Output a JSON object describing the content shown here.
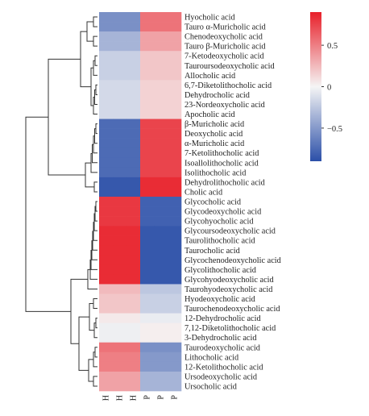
{
  "chart_data": {
    "type": "heatmap",
    "title": "",
    "columns": [
      "H",
      "H",
      "H",
      "P",
      "P",
      "P"
    ],
    "rows": [
      "Hyocholic acid",
      "Tauro α-Muricholic acid",
      "Chenodeoxycholic acid",
      "Tauro β-Muricholic acid",
      "7-Ketodeoxycholic acid",
      "Tauroursodeoxycholic acid",
      "Allocholic acid",
      "6,7-Diketolithocholic acid",
      "Dehydrocholic acid",
      "23-Nordeoxycholic acid",
      "Apocholic acid",
      "β-Muricholic acid",
      "Deoxycholic acid",
      "α-Muricholic acid",
      "7-Ketolithocholic acid",
      "Isoallolithocholic acid",
      "Isolithocholic acid",
      "Dehydrolithocholic acid",
      "Cholic acid",
      "Glycocholic acid",
      "Glycodeoxycholic acid",
      "Glycohyocholic acid",
      "Glycoursodeoxycholic acid",
      "Taurolithocholic acid",
      "Taurocholic acid",
      "Glycochenodeoxycholic acid",
      "Glycolithocholic acid",
      "Glycohyodeoxycholic acid",
      "Taurohyodeoxycholic acid",
      "Hyodeoxycholic acid",
      "Taurochenodeoxycholic acid",
      "12-Dehydrocholic acid",
      "7,12-Diketolithocholic acid",
      "3-Dehydrocholic acid",
      "Taurodeoxycholic acid",
      "Lithocholic acid",
      "12-Ketolithocholic acid",
      "Ursodeoxycholic acid",
      "Ursocholic acid"
    ],
    "values": [
      [
        -0.55,
        -0.55,
        -0.55,
        0.55,
        0.55,
        0.55
      ],
      [
        -0.55,
        -0.55,
        -0.55,
        0.55,
        0.55,
        0.55
      ],
      [
        -0.35,
        -0.35,
        -0.35,
        0.35,
        0.35,
        0.35
      ],
      [
        -0.35,
        -0.35,
        -0.35,
        0.35,
        0.35,
        0.35
      ],
      [
        -0.2,
        -0.2,
        -0.2,
        0.2,
        0.2,
        0.2
      ],
      [
        -0.2,
        -0.2,
        -0.2,
        0.2,
        0.2,
        0.2
      ],
      [
        -0.2,
        -0.2,
        -0.2,
        0.2,
        0.2,
        0.2
      ],
      [
        -0.15,
        -0.15,
        -0.15,
        0.15,
        0.15,
        0.15
      ],
      [
        -0.15,
        -0.15,
        -0.15,
        0.15,
        0.15,
        0.15
      ],
      [
        -0.15,
        -0.15,
        -0.15,
        0.15,
        0.15,
        0.15
      ],
      [
        -0.15,
        -0.15,
        -0.15,
        0.15,
        0.15,
        0.15
      ],
      [
        -0.75,
        -0.75,
        -0.75,
        0.75,
        0.75,
        0.75
      ],
      [
        -0.75,
        -0.75,
        -0.75,
        0.75,
        0.75,
        0.75
      ],
      [
        -0.75,
        -0.75,
        -0.75,
        0.75,
        0.75,
        0.75
      ],
      [
        -0.75,
        -0.75,
        -0.75,
        0.75,
        0.75,
        0.75
      ],
      [
        -0.75,
        -0.75,
        -0.75,
        0.75,
        0.75,
        0.75
      ],
      [
        -0.75,
        -0.75,
        -0.75,
        0.75,
        0.75,
        0.75
      ],
      [
        -0.85,
        -0.85,
        -0.85,
        0.85,
        0.85,
        0.85
      ],
      [
        -0.85,
        -0.85,
        -0.85,
        0.85,
        0.85,
        0.85
      ],
      [
        0.8,
        0.8,
        0.8,
        -0.8,
        -0.8,
        -0.8
      ],
      [
        0.8,
        0.8,
        0.8,
        -0.8,
        -0.8,
        -0.8
      ],
      [
        0.8,
        0.8,
        0.8,
        -0.8,
        -0.8,
        -0.8
      ],
      [
        0.85,
        0.85,
        0.85,
        -0.85,
        -0.85,
        -0.85
      ],
      [
        0.85,
        0.85,
        0.85,
        -0.85,
        -0.85,
        -0.85
      ],
      [
        0.85,
        0.85,
        0.85,
        -0.85,
        -0.85,
        -0.85
      ],
      [
        0.85,
        0.85,
        0.85,
        -0.85,
        -0.85,
        -0.85
      ],
      [
        0.85,
        0.85,
        0.85,
        -0.85,
        -0.85,
        -0.85
      ],
      [
        0.85,
        0.85,
        0.85,
        -0.85,
        -0.85,
        -0.85
      ],
      [
        0.25,
        0.25,
        0.25,
        -0.25,
        -0.25,
        -0.25
      ],
      [
        0.2,
        0.2,
        0.2,
        -0.2,
        -0.2,
        -0.2
      ],
      [
        0.2,
        0.2,
        0.2,
        -0.2,
        -0.2,
        -0.2
      ],
      [
        0.05,
        0.05,
        0.05,
        -0.05,
        -0.05,
        -0.05
      ],
      [
        -0.03,
        -0.03,
        -0.03,
        0.03,
        0.03,
        0.03
      ],
      [
        -0.03,
        -0.03,
        -0.03,
        0.03,
        0.03,
        0.03
      ],
      [
        0.55,
        0.55,
        0.55,
        -0.55,
        -0.55,
        -0.55
      ],
      [
        0.5,
        0.5,
        0.5,
        -0.5,
        -0.5,
        -0.5
      ],
      [
        0.5,
        0.5,
        0.5,
        -0.5,
        -0.5,
        -0.5
      ],
      [
        0.35,
        0.35,
        0.35,
        -0.35,
        -0.35,
        -0.35
      ],
      [
        0.35,
        0.35,
        0.35,
        -0.35,
        -0.35,
        -0.35
      ]
    ],
    "color_scale": {
      "min": -0.9,
      "max": 0.9,
      "low_color": "#2b4fa8",
      "mid_color": "#f5f5f5",
      "high_color": "#e8202a"
    },
    "legend": {
      "ticks": [
        0.5,
        0,
        -0.5
      ],
      "tick_labels": [
        "0.5",
        "0",
        "−0.5"
      ],
      "placement": "top-right"
    },
    "row_dendrogram": true
  }
}
